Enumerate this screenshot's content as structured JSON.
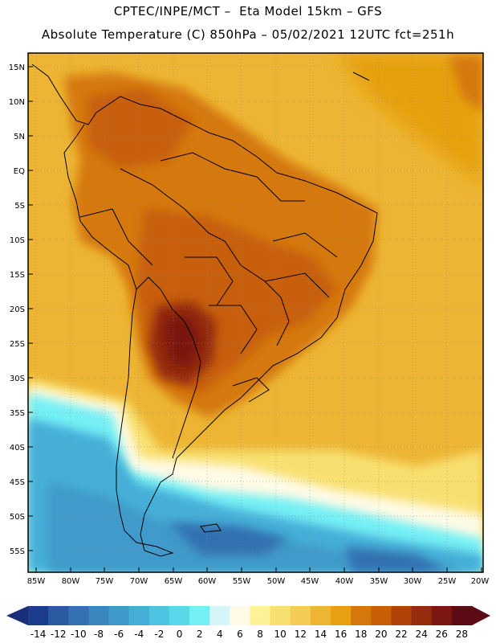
{
  "header": {
    "line1": "CPTEC/INPE/MCT –  Eta Model 15km – GFS",
    "line2": "Absolute Temperature (C) 850hPa – 05/02/2021 12UTC fct=251h"
  },
  "axes": {
    "lon_labels": [
      "85W",
      "80W",
      "75W",
      "70W",
      "65W",
      "60W",
      "55W",
      "50W",
      "45W",
      "40W",
      "35W",
      "30W",
      "25W",
      "20W"
    ],
    "lat_labels": [
      "15N",
      "10N",
      "5N",
      "EQ",
      "5S",
      "10S",
      "15S",
      "20S",
      "25S",
      "30S",
      "35S",
      "40S",
      "45S",
      "50S",
      "55S"
    ]
  },
  "colorbar": {
    "labels": [
      "-14",
      "-12",
      "-10",
      "-8",
      "-6",
      "-4",
      "-2",
      "0",
      "2",
      "4",
      "6",
      "8",
      "10",
      "12",
      "14",
      "16",
      "18",
      "20",
      "22",
      "24",
      "26",
      "28"
    ],
    "colors": [
      "#1c3c8c",
      "#2a5aa0",
      "#3371b0",
      "#3a86bf",
      "#3f9acb",
      "#45afd8",
      "#4ec4e2",
      "#5ad8ea",
      "#74f0f5",
      "#d6f5fb",
      "#fffbe6",
      "#fdf29a",
      "#f8e070",
      "#f3cb55",
      "#edb533",
      "#e6a010",
      "#d5780b",
      "#c75e08",
      "#b04408",
      "#952c0c",
      "#7a1710",
      "#5c0a14"
    ],
    "under_color": "#1a2f7a",
    "over_color": "#5c0a14"
  },
  "map_colors": {
    "ocean_warm": "#edb533",
    "ocean_hot": "#e6a010",
    "land_hot": "#d5780b",
    "land_hotter": "#c75e08",
    "land_core": "#952c0c",
    "land_peak": "#7a1710",
    "cool_band": "#f8e070",
    "mild": "#fffbe6",
    "cold1": "#74f0f5",
    "cold2": "#45afd8",
    "cold3": "#3f9acb",
    "cold4": "#3371b0"
  }
}
